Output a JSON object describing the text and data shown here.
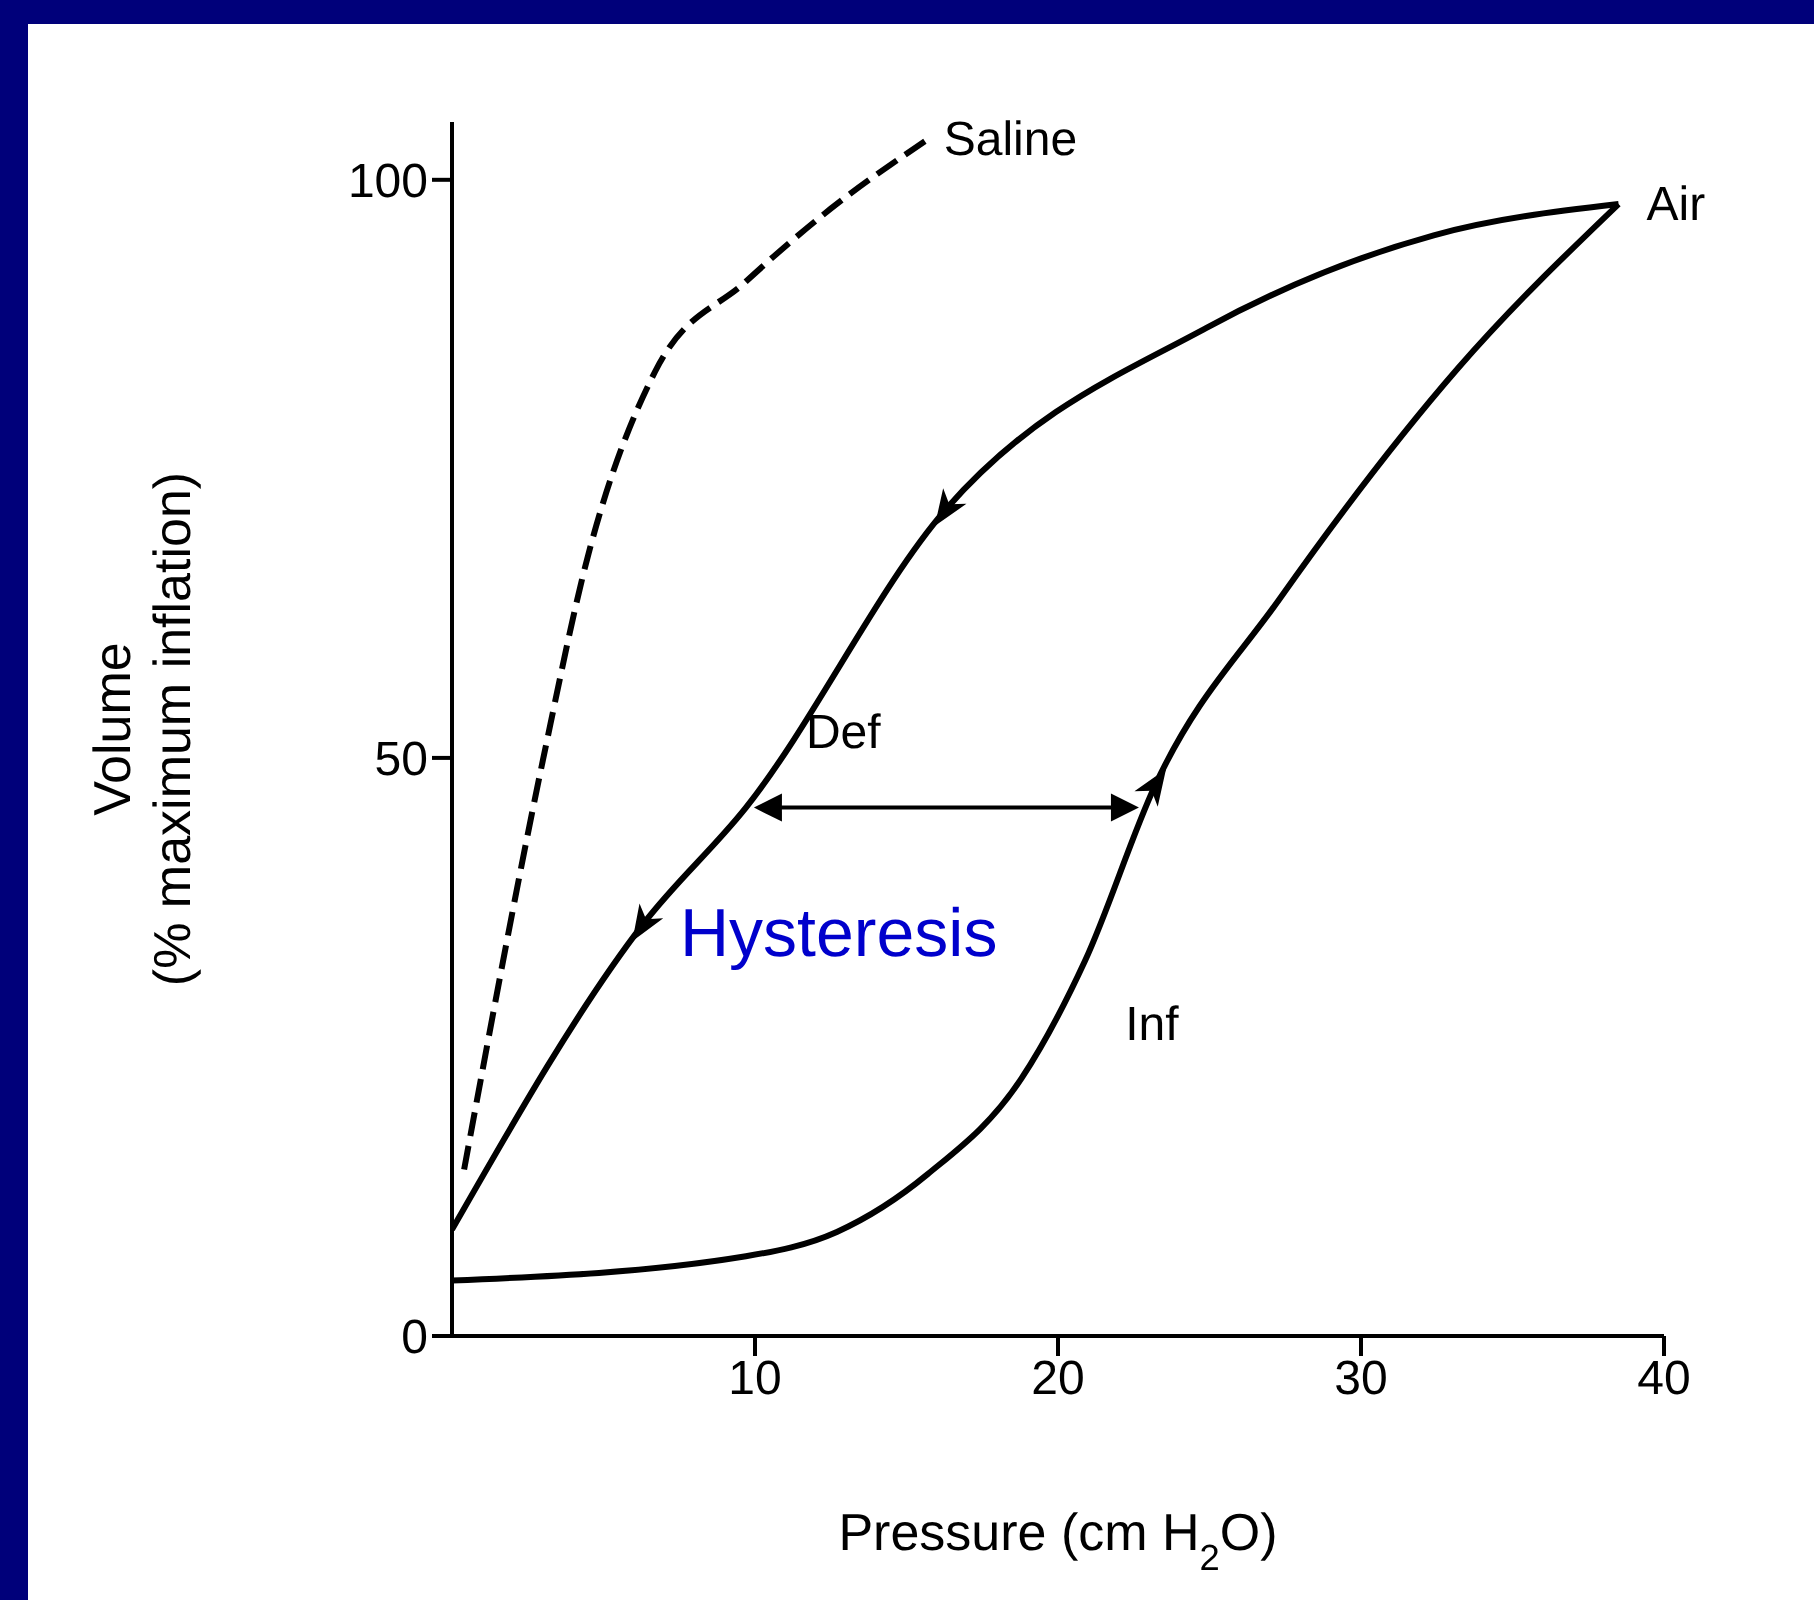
{
  "chart_data": {
    "type": "line",
    "xlabel": "Pressure (cm H$_{2}$O)",
    "ylabel": "Volume\n(% maximum inflation)",
    "xlim": [
      0,
      40
    ],
    "xticks": [
      10,
      20,
      30,
      40
    ],
    "ylim": [
      0,
      105
    ],
    "yticks": [
      0,
      50,
      100
    ],
    "marker": "none",
    "series": [
      {
        "name": "Saline",
        "color": "#000000",
        "line_style": "dashed",
        "x": [
          0.4,
          3,
          4.5,
          6.7,
          9.7,
          12.5,
          15.7
        ],
        "values": [
          14.4,
          49.8,
          67.6,
          83.4,
          91.2,
          97.5,
          103.5
        ]
      },
      {
        "name": "Def",
        "color": "#000000",
        "line_style": "solid",
        "x": [
          38.5,
          32.4,
          24.9,
          16.3,
          9.7,
          6.3,
          0
        ],
        "values": [
          97.9,
          95.2,
          87.2,
          71.5,
          45.7,
          35.6,
          9.2
        ]
      },
      {
        "name": "Inf",
        "color": "#000000",
        "line_style": "solid",
        "x": [
          0,
          9.7,
          12.7,
          15.7,
          18.8,
          20.9,
          23.2,
          27.3,
          33.2,
          38.5
        ],
        "values": [
          4.8,
          6.9,
          9,
          14,
          22.3,
          32.5,
          47.6,
          63.7,
          83.7,
          97.9
        ]
      }
    ],
    "annotations": [
      {
        "text": "Air",
        "x": 38.5,
        "y": 97.9
      },
      "Hysteresis"
    ]
  }
}
